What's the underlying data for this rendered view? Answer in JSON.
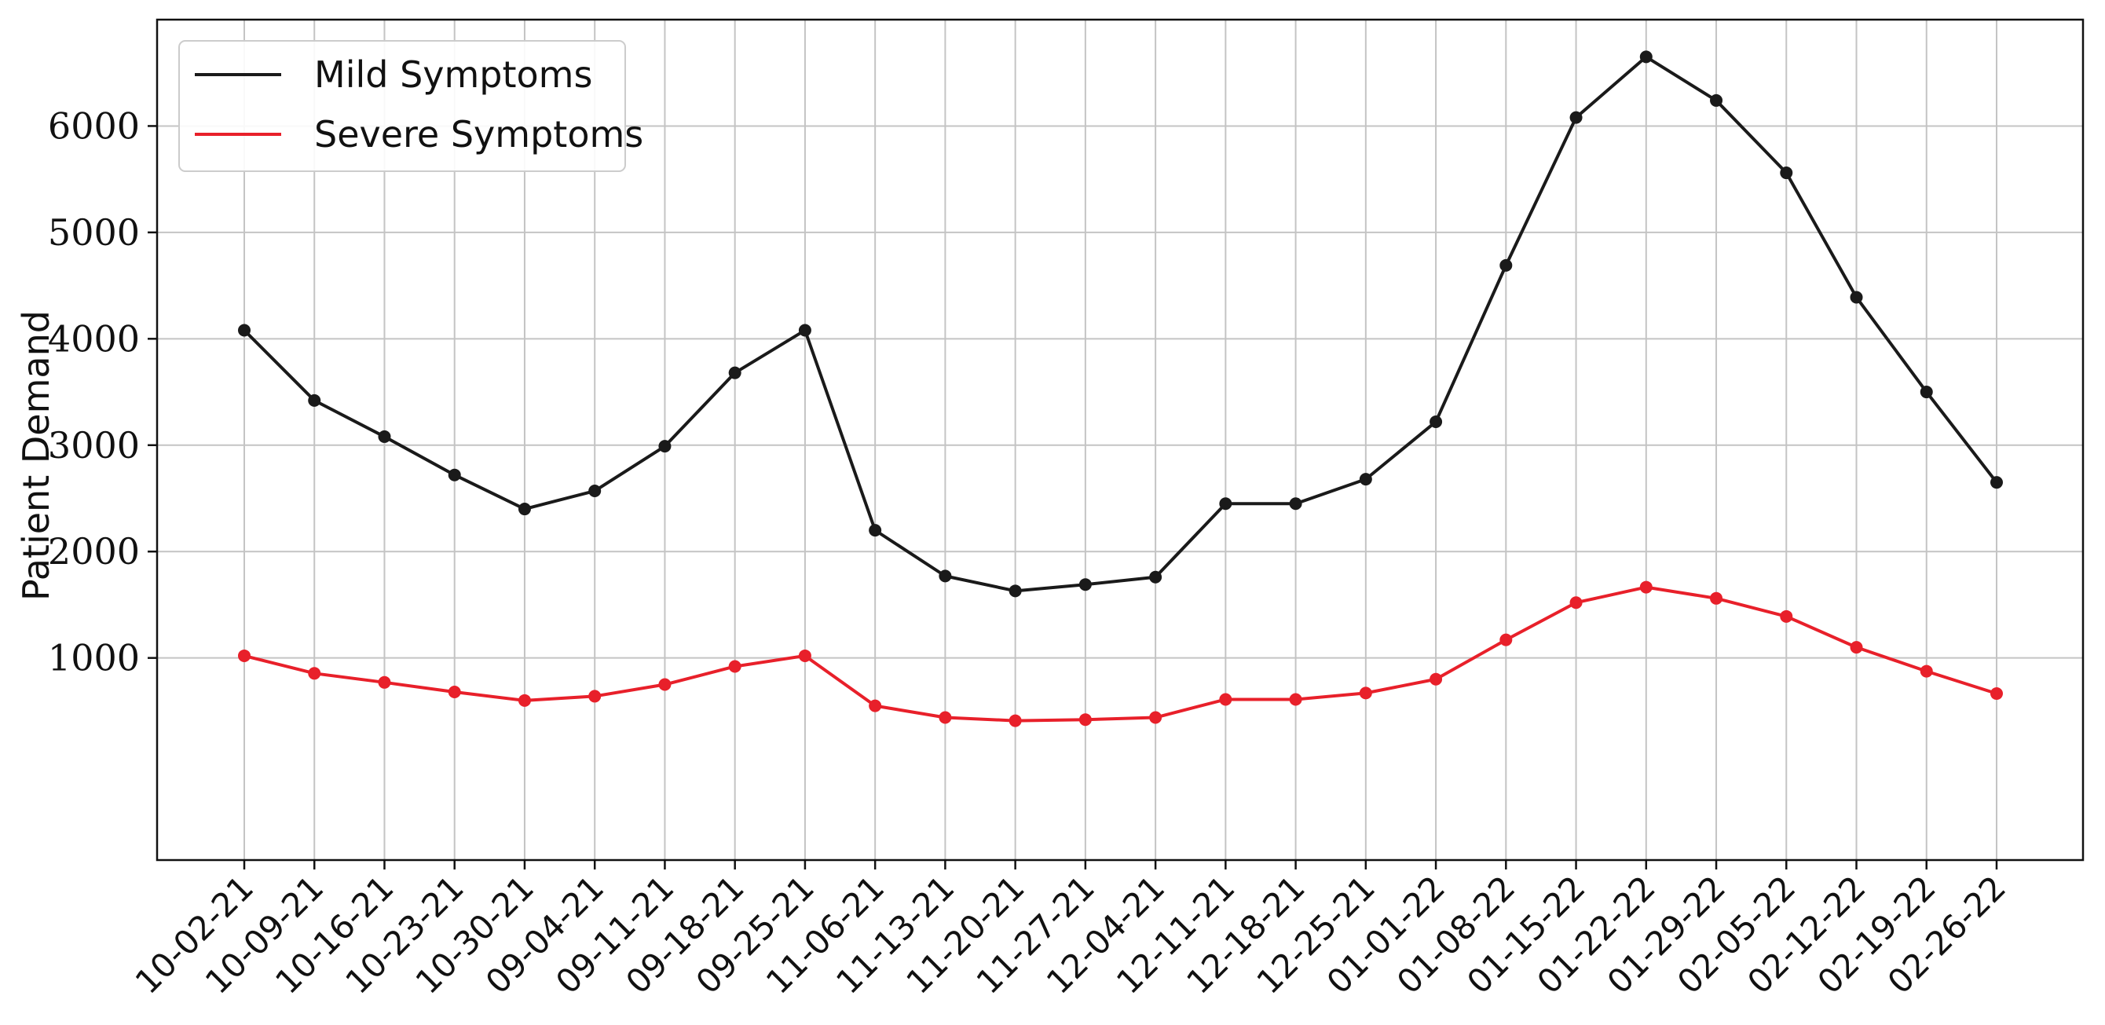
{
  "chart_data": {
    "type": "line",
    "title": "",
    "xlabel": "",
    "ylabel": "Patient Demand",
    "categories": [
      "10-02-21",
      "10-09-21",
      "10-16-21",
      "10-23-21",
      "10-30-21",
      "09-04-21",
      "09-11-21",
      "09-18-21",
      "09-25-21",
      "11-06-21",
      "11-13-21",
      "11-20-21",
      "11-27-21",
      "12-04-21",
      "12-11-21",
      "12-18-21",
      "12-25-21",
      "01-01-22",
      "01-08-22",
      "01-15-22",
      "01-22-22",
      "01-29-22",
      "02-05-22",
      "02-12-22",
      "02-19-22",
      "02-26-22"
    ],
    "yticks": [
      1000,
      2000,
      3000,
      4000,
      5000,
      6000
    ],
    "ylim": [
      -900,
      7000
    ],
    "grid": true,
    "legend_position": "top-left",
    "series": [
      {
        "name": "Mild Symptoms",
        "color": "#1a1a1a",
        "values": [
          4080,
          3420,
          3080,
          2720,
          2400,
          2570,
          2990,
          3680,
          4080,
          2200,
          1770,
          1630,
          1690,
          1760,
          2450,
          2450,
          2680,
          3220,
          4690,
          6080,
          6650,
          6240,
          5560,
          4390,
          3500,
          2650
        ]
      },
      {
        "name": "Severe Symptoms",
        "color": "#e8202a",
        "values": [
          1020,
          855,
          770,
          680,
          600,
          640,
          750,
          920,
          1020,
          550,
          440,
          410,
          420,
          440,
          610,
          610,
          670,
          800,
          1170,
          1520,
          1665,
          1560,
          1390,
          1100,
          875,
          665
        ]
      }
    ]
  }
}
